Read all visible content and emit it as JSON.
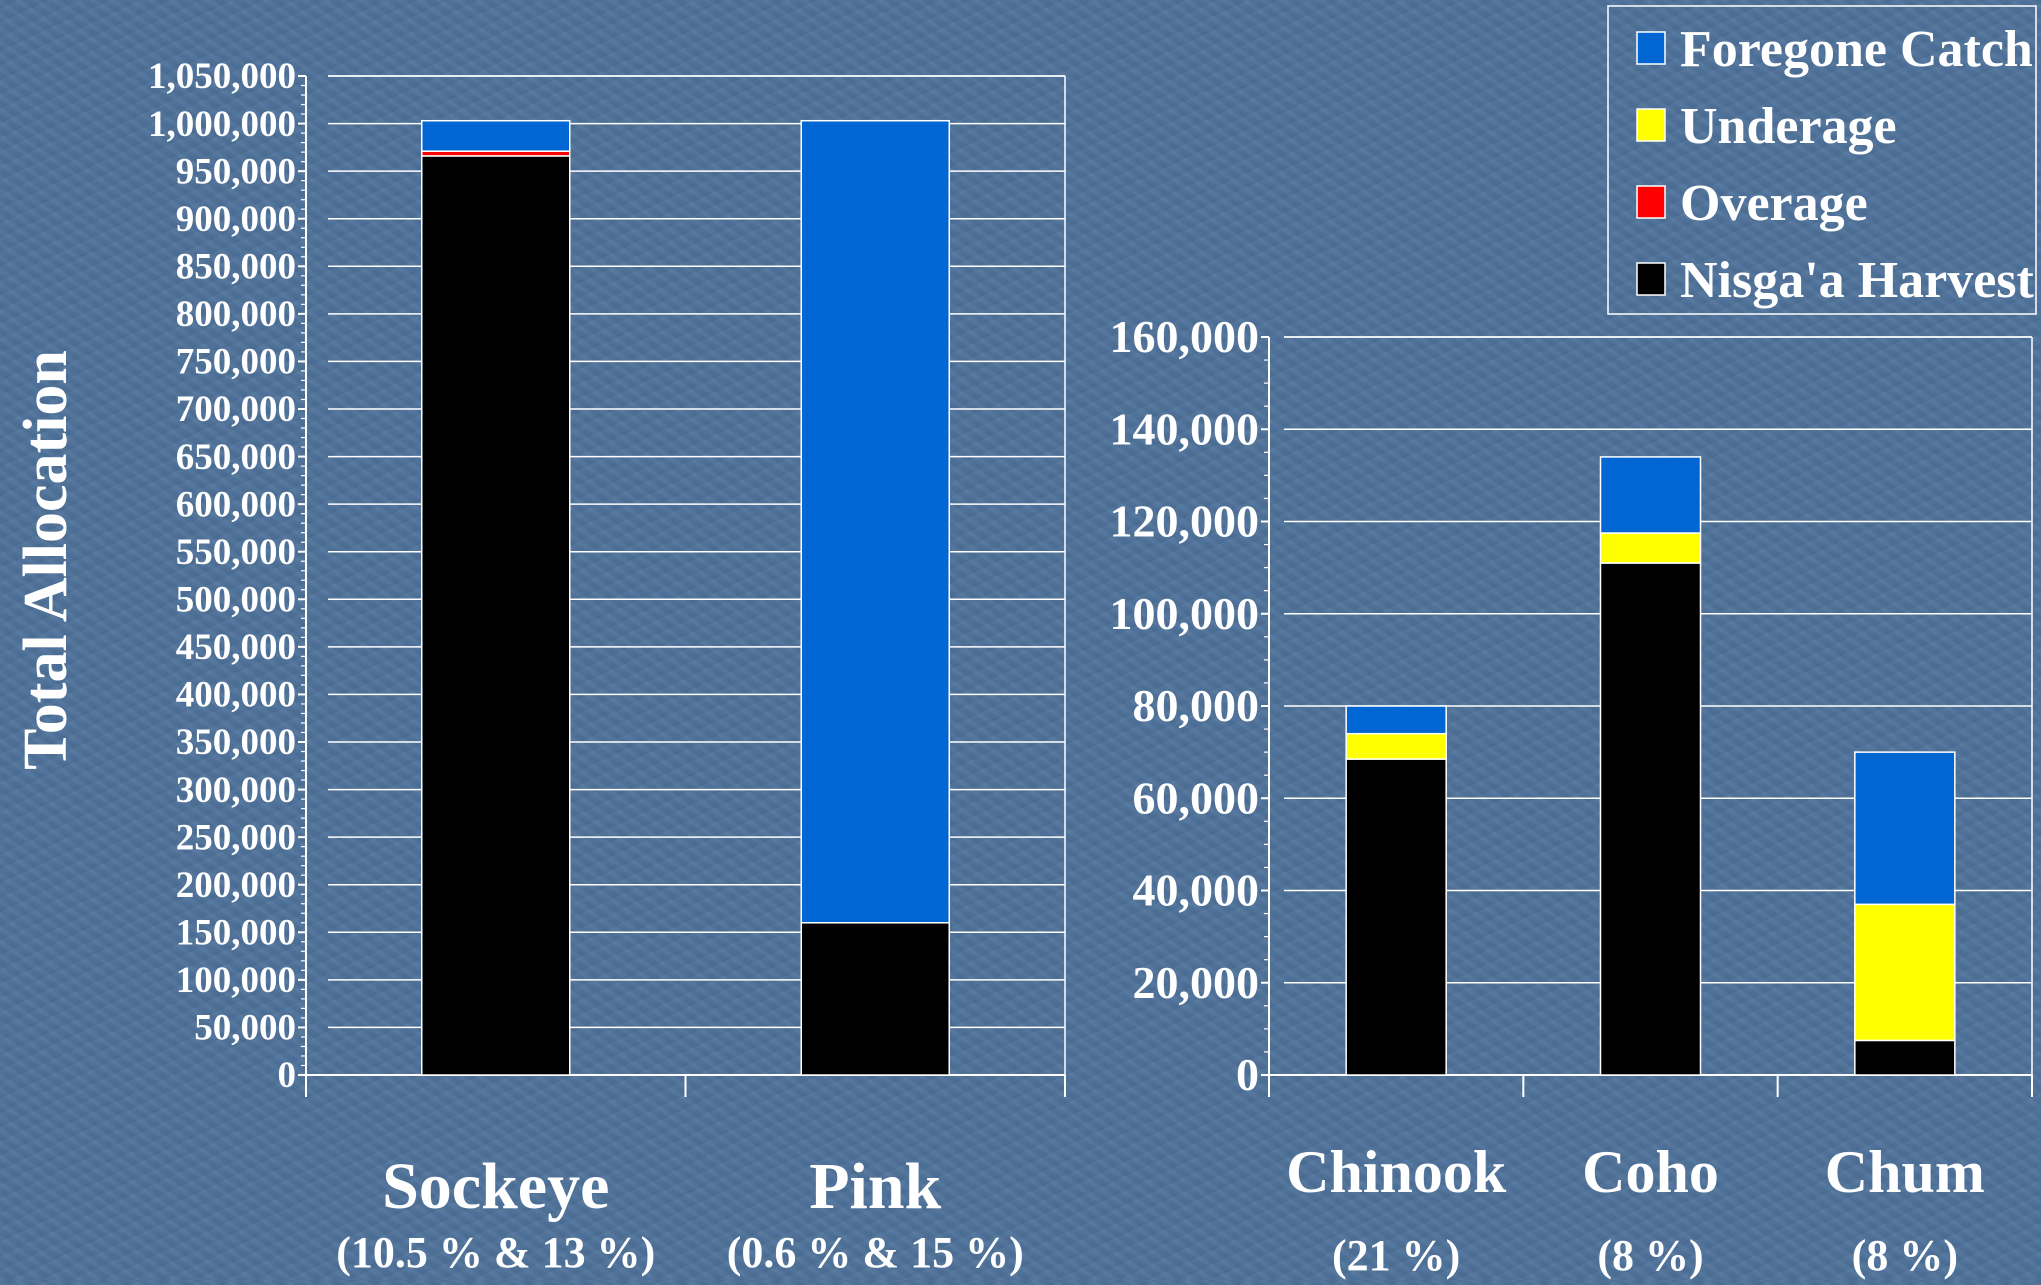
{
  "colors": {
    "foregone": "#0066d4",
    "underage": "#ffff00",
    "overage": "#ff0000",
    "harvest": "#000000",
    "text": "#ffffff",
    "grid": "#ffffff"
  },
  "y_axis_label": "Total Allocation",
  "legend": [
    {
      "name": "Foregone Catch",
      "color": "#0066d4"
    },
    {
      "name": "Underage",
      "color": "#ffff00"
    },
    {
      "name": "Overage",
      "color": "#ff0000"
    },
    {
      "name": "Nisga'a Harvest",
      "color": "#000000"
    }
  ],
  "chart_data": [
    {
      "type": "bar",
      "stacked": true,
      "categories": [
        "Sockeye",
        "Pink"
      ],
      "category_notes": [
        "(10.5 % & 13 %)",
        "(0.6 % & 15 %)"
      ],
      "ylabel": "Total Allocation",
      "ylim": [
        0,
        1050000
      ],
      "ytick_step": 50000,
      "grid": true,
      "series": [
        {
          "name": "Nisga'a Harvest",
          "values": [
            966000,
            160000
          ]
        },
        {
          "name": "Overage",
          "values": [
            5000,
            0
          ]
        },
        {
          "name": "Underage",
          "values": [
            0,
            0
          ]
        },
        {
          "name": "Foregone Catch",
          "values": [
            32000,
            843000
          ]
        }
      ]
    },
    {
      "type": "bar",
      "stacked": true,
      "categories": [
        "Chinook",
        "Coho",
        "Chum"
      ],
      "category_notes": [
        "(21 %)",
        "(8 %)",
        "(8 %)"
      ],
      "ylim": [
        0,
        160000
      ],
      "ytick_step": 20000,
      "grid": true,
      "legend_position": "top-right",
      "series": [
        {
          "name": "Nisga'a Harvest",
          "values": [
            68500,
            111000,
            7500
          ]
        },
        {
          "name": "Overage",
          "values": [
            0,
            0,
            0
          ]
        },
        {
          "name": "Underage",
          "values": [
            5500,
            6500,
            29500
          ]
        },
        {
          "name": "Foregone Catch",
          "values": [
            6000,
            16500,
            33000
          ]
        }
      ]
    }
  ]
}
